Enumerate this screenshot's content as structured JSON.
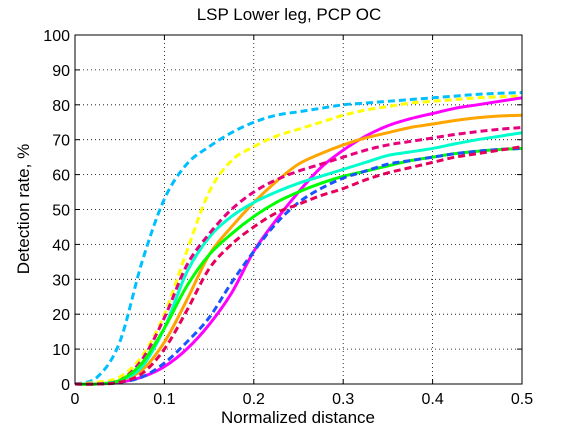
{
  "chart_data": {
    "type": "line",
    "title": "LSP Lower leg, PCP OC",
    "xlabel": "Normalized distance",
    "ylabel": "Detection rate, %",
    "xlim": [
      0,
      0.5
    ],
    "ylim": [
      0,
      100
    ],
    "grid": true,
    "x_ticks": [
      0,
      0.1,
      0.2,
      0.3,
      0.4,
      0.5
    ],
    "x_tick_labels": [
      "0",
      "0.1",
      "0.2",
      "0.3",
      "0.4",
      "0.5"
    ],
    "y_ticks": [
      0,
      10,
      20,
      30,
      40,
      50,
      60,
      70,
      80,
      90,
      100
    ],
    "y_tick_labels": [
      "0",
      "10",
      "20",
      "30",
      "40",
      "50",
      "60",
      "70",
      "80",
      "90",
      "100"
    ],
    "x": [
      0,
      0.025,
      0.05,
      0.075,
      0.1,
      0.125,
      0.15,
      0.175,
      0.2,
      0.225,
      0.25,
      0.275,
      0.3,
      0.325,
      0.35,
      0.375,
      0.4,
      0.425,
      0.45,
      0.475,
      0.5
    ],
    "series": [
      {
        "color": "#00bfff",
        "dash": true,
        "values": [
          0,
          2,
          12,
          35,
          53,
          63,
          68,
          72,
          75,
          77,
          78,
          79,
          80,
          80.5,
          81,
          81.5,
          82,
          82.5,
          83,
          83.3,
          83.5
        ]
      },
      {
        "color": "#ffff00",
        "dash": true,
        "values": [
          0,
          0.5,
          2,
          8,
          20,
          38,
          55,
          64,
          68,
          71,
          73,
          75,
          77,
          78.5,
          79.5,
          80.5,
          81,
          81.5,
          82,
          82.3,
          82.5
        ]
      },
      {
        "color": "#ff00ff",
        "dash": false,
        "values": [
          0,
          0,
          0.5,
          2,
          5,
          10,
          17,
          26,
          38,
          47,
          55,
          62,
          67,
          71,
          74,
          76,
          77.5,
          79,
          80,
          81,
          82
        ]
      },
      {
        "color": "#ffa500",
        "dash": false,
        "values": [
          0,
          0,
          1,
          4,
          12,
          24,
          37,
          45,
          52,
          58,
          63,
          66,
          68.5,
          70.5,
          72,
          73.5,
          74.5,
          75.5,
          76.3,
          76.8,
          77
        ]
      },
      {
        "color": "#00ffcc",
        "dash": false,
        "values": [
          0,
          0,
          1,
          5,
          16,
          32,
          42,
          48,
          52,
          55,
          57.5,
          59.5,
          61.5,
          63.5,
          65.5,
          66.5,
          67.5,
          68.8,
          70,
          71,
          72
        ]
      },
      {
        "color": "#e6007e",
        "dash": true,
        "values": [
          0,
          0,
          1,
          7,
          19,
          34,
          43,
          50,
          55,
          58.5,
          61,
          63,
          65,
          67,
          68.5,
          69.5,
          70.5,
          71.5,
          72.3,
          73,
          73.5
        ]
      },
      {
        "color": "#00ff00",
        "dash": false,
        "values": [
          0,
          0,
          1,
          6,
          16,
          28,
          37,
          43,
          48,
          52,
          55,
          57.5,
          59.5,
          61,
          62.5,
          64,
          65,
          66,
          66.7,
          67.2,
          67.5
        ]
      },
      {
        "color": "#1a53ff",
        "dash": true,
        "values": [
          0,
          0,
          0.5,
          2,
          6,
          12,
          19,
          29,
          38,
          46,
          52,
          56,
          59,
          61,
          63,
          64,
          65,
          66,
          66.7,
          67.2,
          67.5
        ]
      },
      {
        "color": "#e6005c",
        "dash": true,
        "values": [
          0,
          0,
          0.5,
          3,
          10,
          21,
          33,
          40,
          45,
          49,
          51.5,
          54,
          56,
          58.5,
          60.5,
          62,
          63.5,
          65,
          66,
          67,
          68
        ]
      }
    ]
  }
}
